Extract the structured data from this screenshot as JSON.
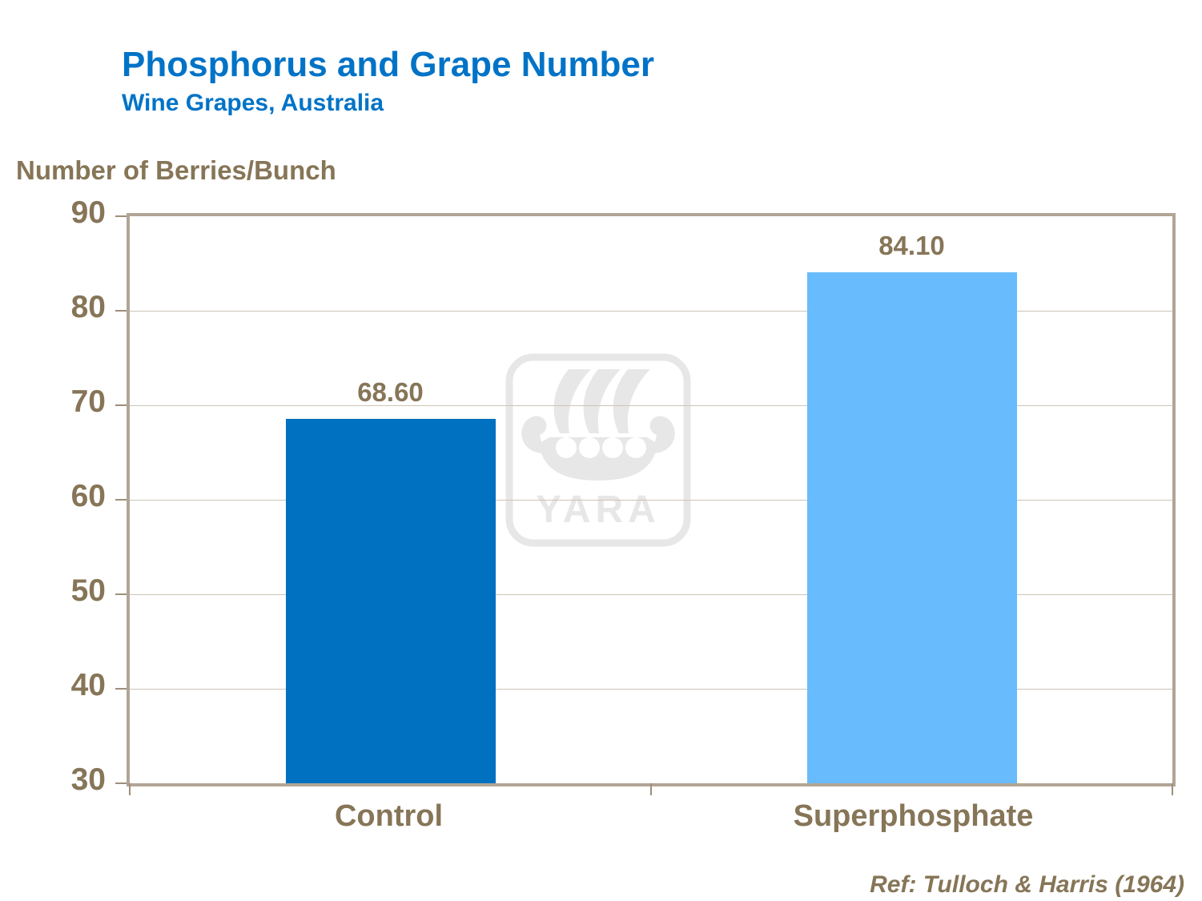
{
  "slide": {
    "title": "Phosphorus and Grape Number",
    "subtitle": "Wine Grapes, Australia",
    "reference": "Ref: Tulloch & Harris (1964)"
  },
  "chart_data": {
    "type": "bar",
    "title": "Phosphorus and Grape Number",
    "subtitle": "Wine Grapes, Australia",
    "ylabel": "Number of Berries/Bunch",
    "xlabel": "",
    "categories": [
      "Control",
      "Superphosphate"
    ],
    "values": [
      68.6,
      84.1
    ],
    "value_labels": [
      "68.60",
      "84.10"
    ],
    "bar_colors": [
      "#0070C0",
      "#68BCFD"
    ],
    "ylim": [
      30,
      90
    ],
    "yticks": [
      30,
      40,
      50,
      60,
      70,
      80,
      90
    ],
    "grid": "horizontal",
    "legend": "none"
  },
  "watermark": {
    "label": "YARA",
    "color": "#E7E7E7"
  },
  "colors": {
    "title_blue": "#0073C7",
    "text_brown": "#867557",
    "axis_taupe": "#B2A596",
    "gridline": "#CDC5B6",
    "background": "#FFFFFF"
  }
}
